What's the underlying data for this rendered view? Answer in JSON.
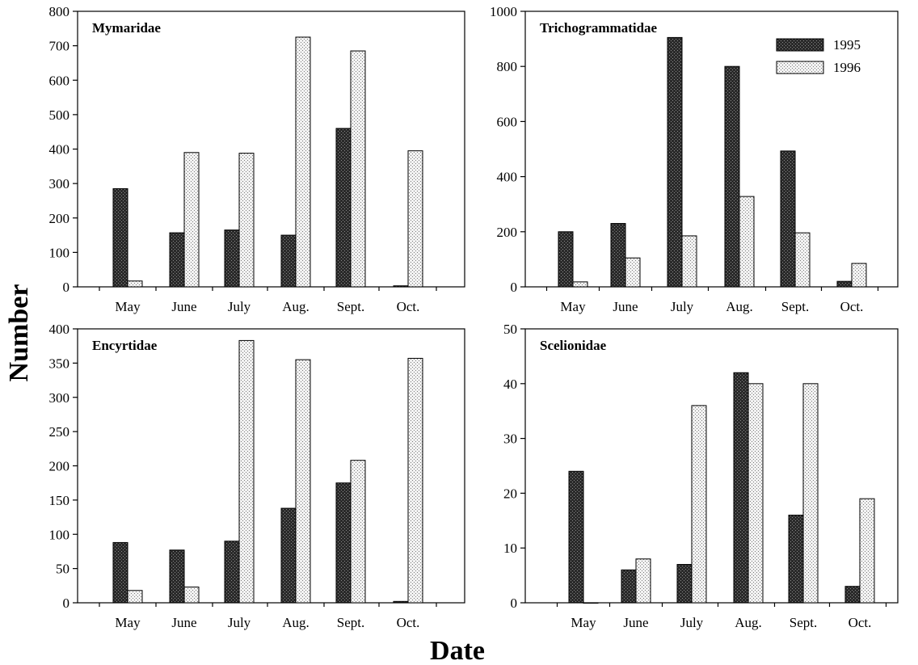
{
  "figure": {
    "ylabel": "Number",
    "xlabel": "Date",
    "series_names": [
      "1995",
      "1996"
    ],
    "colors": {
      "1995": "#3a3a3a",
      "1996": "#e6e6e6",
      "axis": "#000000"
    }
  },
  "chart_data": [
    {
      "type": "bar",
      "title": "Mymaridae",
      "categories": [
        "May",
        "June",
        "July",
        "Aug.",
        "Sept.",
        "Oct."
      ],
      "series": [
        {
          "name": "1995",
          "values": [
            285,
            157,
            165,
            150,
            460,
            3
          ]
        },
        {
          "name": "1996",
          "values": [
            17,
            390,
            388,
            725,
            685,
            395
          ]
        }
      ],
      "ylim": [
        0,
        800
      ],
      "yticks": [
        0,
        100,
        200,
        300,
        400,
        500,
        600,
        700,
        800
      ],
      "legend": false
    },
    {
      "type": "bar",
      "title": "Trichogrammatidae",
      "categories": [
        "May",
        "June",
        "July",
        "Aug.",
        "Sept.",
        "Oct."
      ],
      "series": [
        {
          "name": "1995",
          "values": [
            200,
            230,
            905,
            800,
            493,
            20
          ]
        },
        {
          "name": "1996",
          "values": [
            18,
            105,
            185,
            328,
            196,
            85
          ]
        }
      ],
      "ylim": [
        0,
        1000
      ],
      "yticks": [
        0,
        200,
        400,
        600,
        800,
        1000
      ],
      "legend": true,
      "legend_position": "top-right"
    },
    {
      "type": "bar",
      "title": "Encyrtidae",
      "categories": [
        "May",
        "June",
        "July",
        "Aug.",
        "Sept.",
        "Oct."
      ],
      "series": [
        {
          "name": "1995",
          "values": [
            88,
            77,
            90,
            138,
            175,
            2
          ]
        },
        {
          "name": "1996",
          "values": [
            18,
            23,
            383,
            355,
            208,
            357
          ]
        }
      ],
      "ylim": [
        0,
        400
      ],
      "yticks": [
        0,
        50,
        100,
        150,
        200,
        250,
        300,
        350,
        400
      ],
      "legend": false
    },
    {
      "type": "bar",
      "title": "Scelionidae",
      "categories": [
        "May",
        "June",
        "July",
        "Aug.",
        "Sept.",
        "Oct."
      ],
      "series": [
        {
          "name": "1995",
          "values": [
            24,
            6,
            7,
            42,
            16,
            3
          ]
        },
        {
          "name": "1996",
          "values": [
            0,
            8,
            36,
            40,
            40,
            19
          ]
        }
      ],
      "ylim": [
        0,
        50
      ],
      "yticks": [
        0,
        10,
        20,
        30,
        40,
        50
      ],
      "legend": false
    }
  ]
}
